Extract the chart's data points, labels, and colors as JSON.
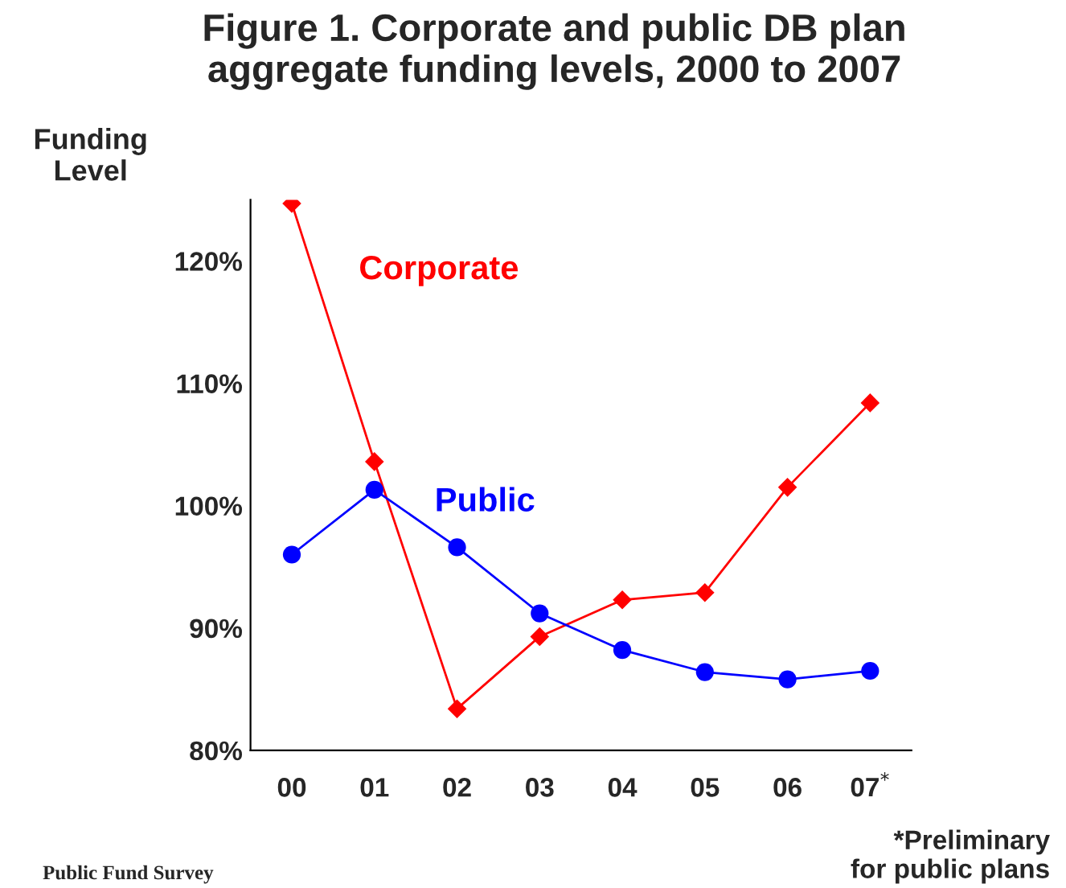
{
  "chart_data": {
    "type": "line",
    "title": "Figure 1. Corporate and public DB plan\naggregate funding levels, 2000 to 2007",
    "ylabel": "Funding\nLevel",
    "categories": [
      "00",
      "01",
      "02",
      "03",
      "04",
      "05",
      "06",
      "07$^{*}$"
    ],
    "series": [
      {
        "name": "Corporate",
        "color": "#ff0000",
        "marker": "diamond",
        "values": [
          124.7,
          103.6,
          83.4,
          89.3,
          92.3,
          92.9,
          101.5,
          108.4
        ]
      },
      {
        "name": "Public",
        "color": "#0000ff",
        "marker": "circle",
        "values": [
          96.0,
          101.3,
          96.6,
          91.2,
          88.2,
          86.4,
          85.8,
          86.5
        ]
      }
    ],
    "ylim": [
      80,
      125
    ],
    "yticks": [
      {
        "value": 80,
        "label": "80%"
      },
      {
        "value": 90,
        "label": "90%"
      },
      {
        "value": 100,
        "label": "100%"
      },
      {
        "value": 110,
        "label": "110%"
      },
      {
        "value": 120,
        "label": "120%"
      }
    ],
    "grid": false,
    "legend": false,
    "annotations": [
      "*Preliminary\nfor public plans",
      "Public Fund Survey"
    ]
  }
}
